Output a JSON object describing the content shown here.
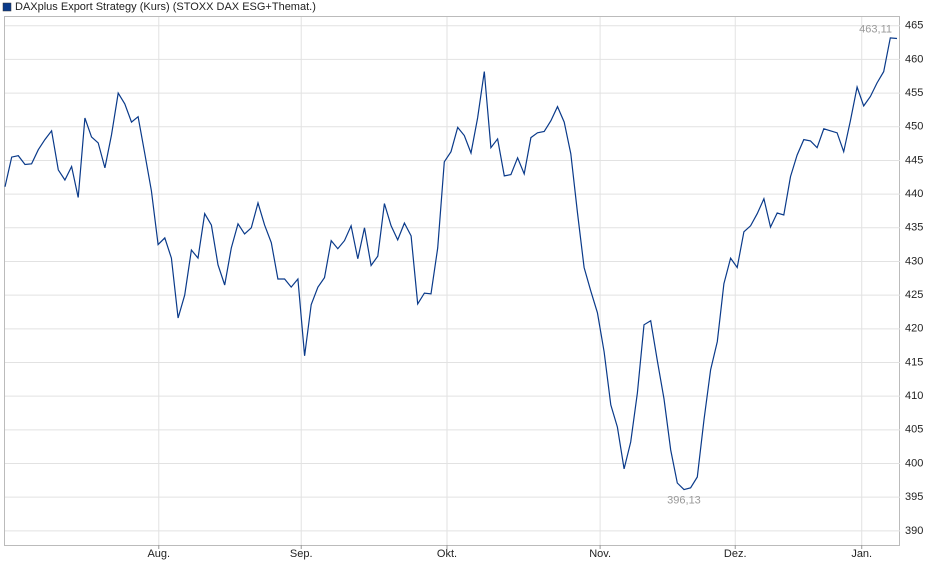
{
  "chart_data": {
    "type": "line",
    "legend": "DAXplus Export Strategy (Kurs) (STOXX DAX ESG+Themat.)",
    "color": "#0a3a8a",
    "values": [
      441.1,
      445.5,
      445.7,
      444.4,
      444.5,
      446.6,
      448.1,
      449.4,
      443.6,
      442.1,
      444.1,
      439.5,
      451.3,
      448.5,
      447.6,
      443.9,
      448.8,
      455.0,
      453.4,
      450.7,
      451.5,
      446.0,
      440.5,
      432.5,
      433.5,
      430.5,
      421.6,
      425.0,
      431.7,
      430.5,
      437.1,
      435.4,
      429.5,
      426.5,
      432.0,
      435.6,
      434.1,
      435.0,
      438.7,
      435.4,
      432.8,
      427.4,
      427.4,
      426.2,
      427.4,
      416.0,
      423.6,
      426.2,
      427.6,
      433.1,
      431.9,
      433.1,
      435.3,
      430.4,
      435.0,
      429.4,
      430.8,
      438.6,
      435.3,
      433.2,
      435.7,
      433.8,
      423.7,
      425.3,
      425.2,
      432.0,
      444.8,
      446.3,
      449.9,
      448.7,
      446.1,
      451.3,
      458.2,
      446.9,
      448.2,
      442.7,
      442.9,
      445.4,
      443.0,
      448.4,
      449.1,
      449.3,
      450.9,
      453.0,
      450.7,
      446.0,
      437.2,
      429.1,
      425.6,
      422.4,
      416.6,
      408.7,
      405.4,
      399.2,
      403.2,
      410.5,
      420.6,
      421.2,
      415.2,
      409.6,
      402.0,
      397.1,
      396.13,
      396.4,
      398.0,
      406.5,
      413.9,
      418.1,
      426.7,
      430.5,
      429.1,
      434.4,
      435.3,
      437.1,
      439.3,
      435.1,
      437.2,
      436.9,
      442.6,
      445.8,
      448.1,
      447.9,
      446.9,
      449.7,
      449.4,
      449.1,
      446.3,
      450.9,
      455.9,
      453.1,
      454.5,
      456.5,
      458.2,
      463.2,
      463.11
    ],
    "value_labels": {
      "102": "396,13",
      "134": "463,11"
    },
    "xlim": [
      0,
      134
    ],
    "xticks": [
      {
        "value": 23.1,
        "label": "Aug."
      },
      {
        "value": 44.5,
        "label": "Sep."
      },
      {
        "value": 66.4,
        "label": "Okt."
      },
      {
        "value": 89.4,
        "label": "Nov."
      },
      {
        "value": 109.7,
        "label": "Dez."
      },
      {
        "value": 128.7,
        "label": "Jan."
      }
    ],
    "ylim": [
      387.9,
      466.3
    ],
    "yticks": [
      390,
      395,
      400,
      405,
      410,
      415,
      420,
      425,
      430,
      435,
      440,
      445,
      450,
      455,
      460,
      465
    ],
    "grid": true
  }
}
